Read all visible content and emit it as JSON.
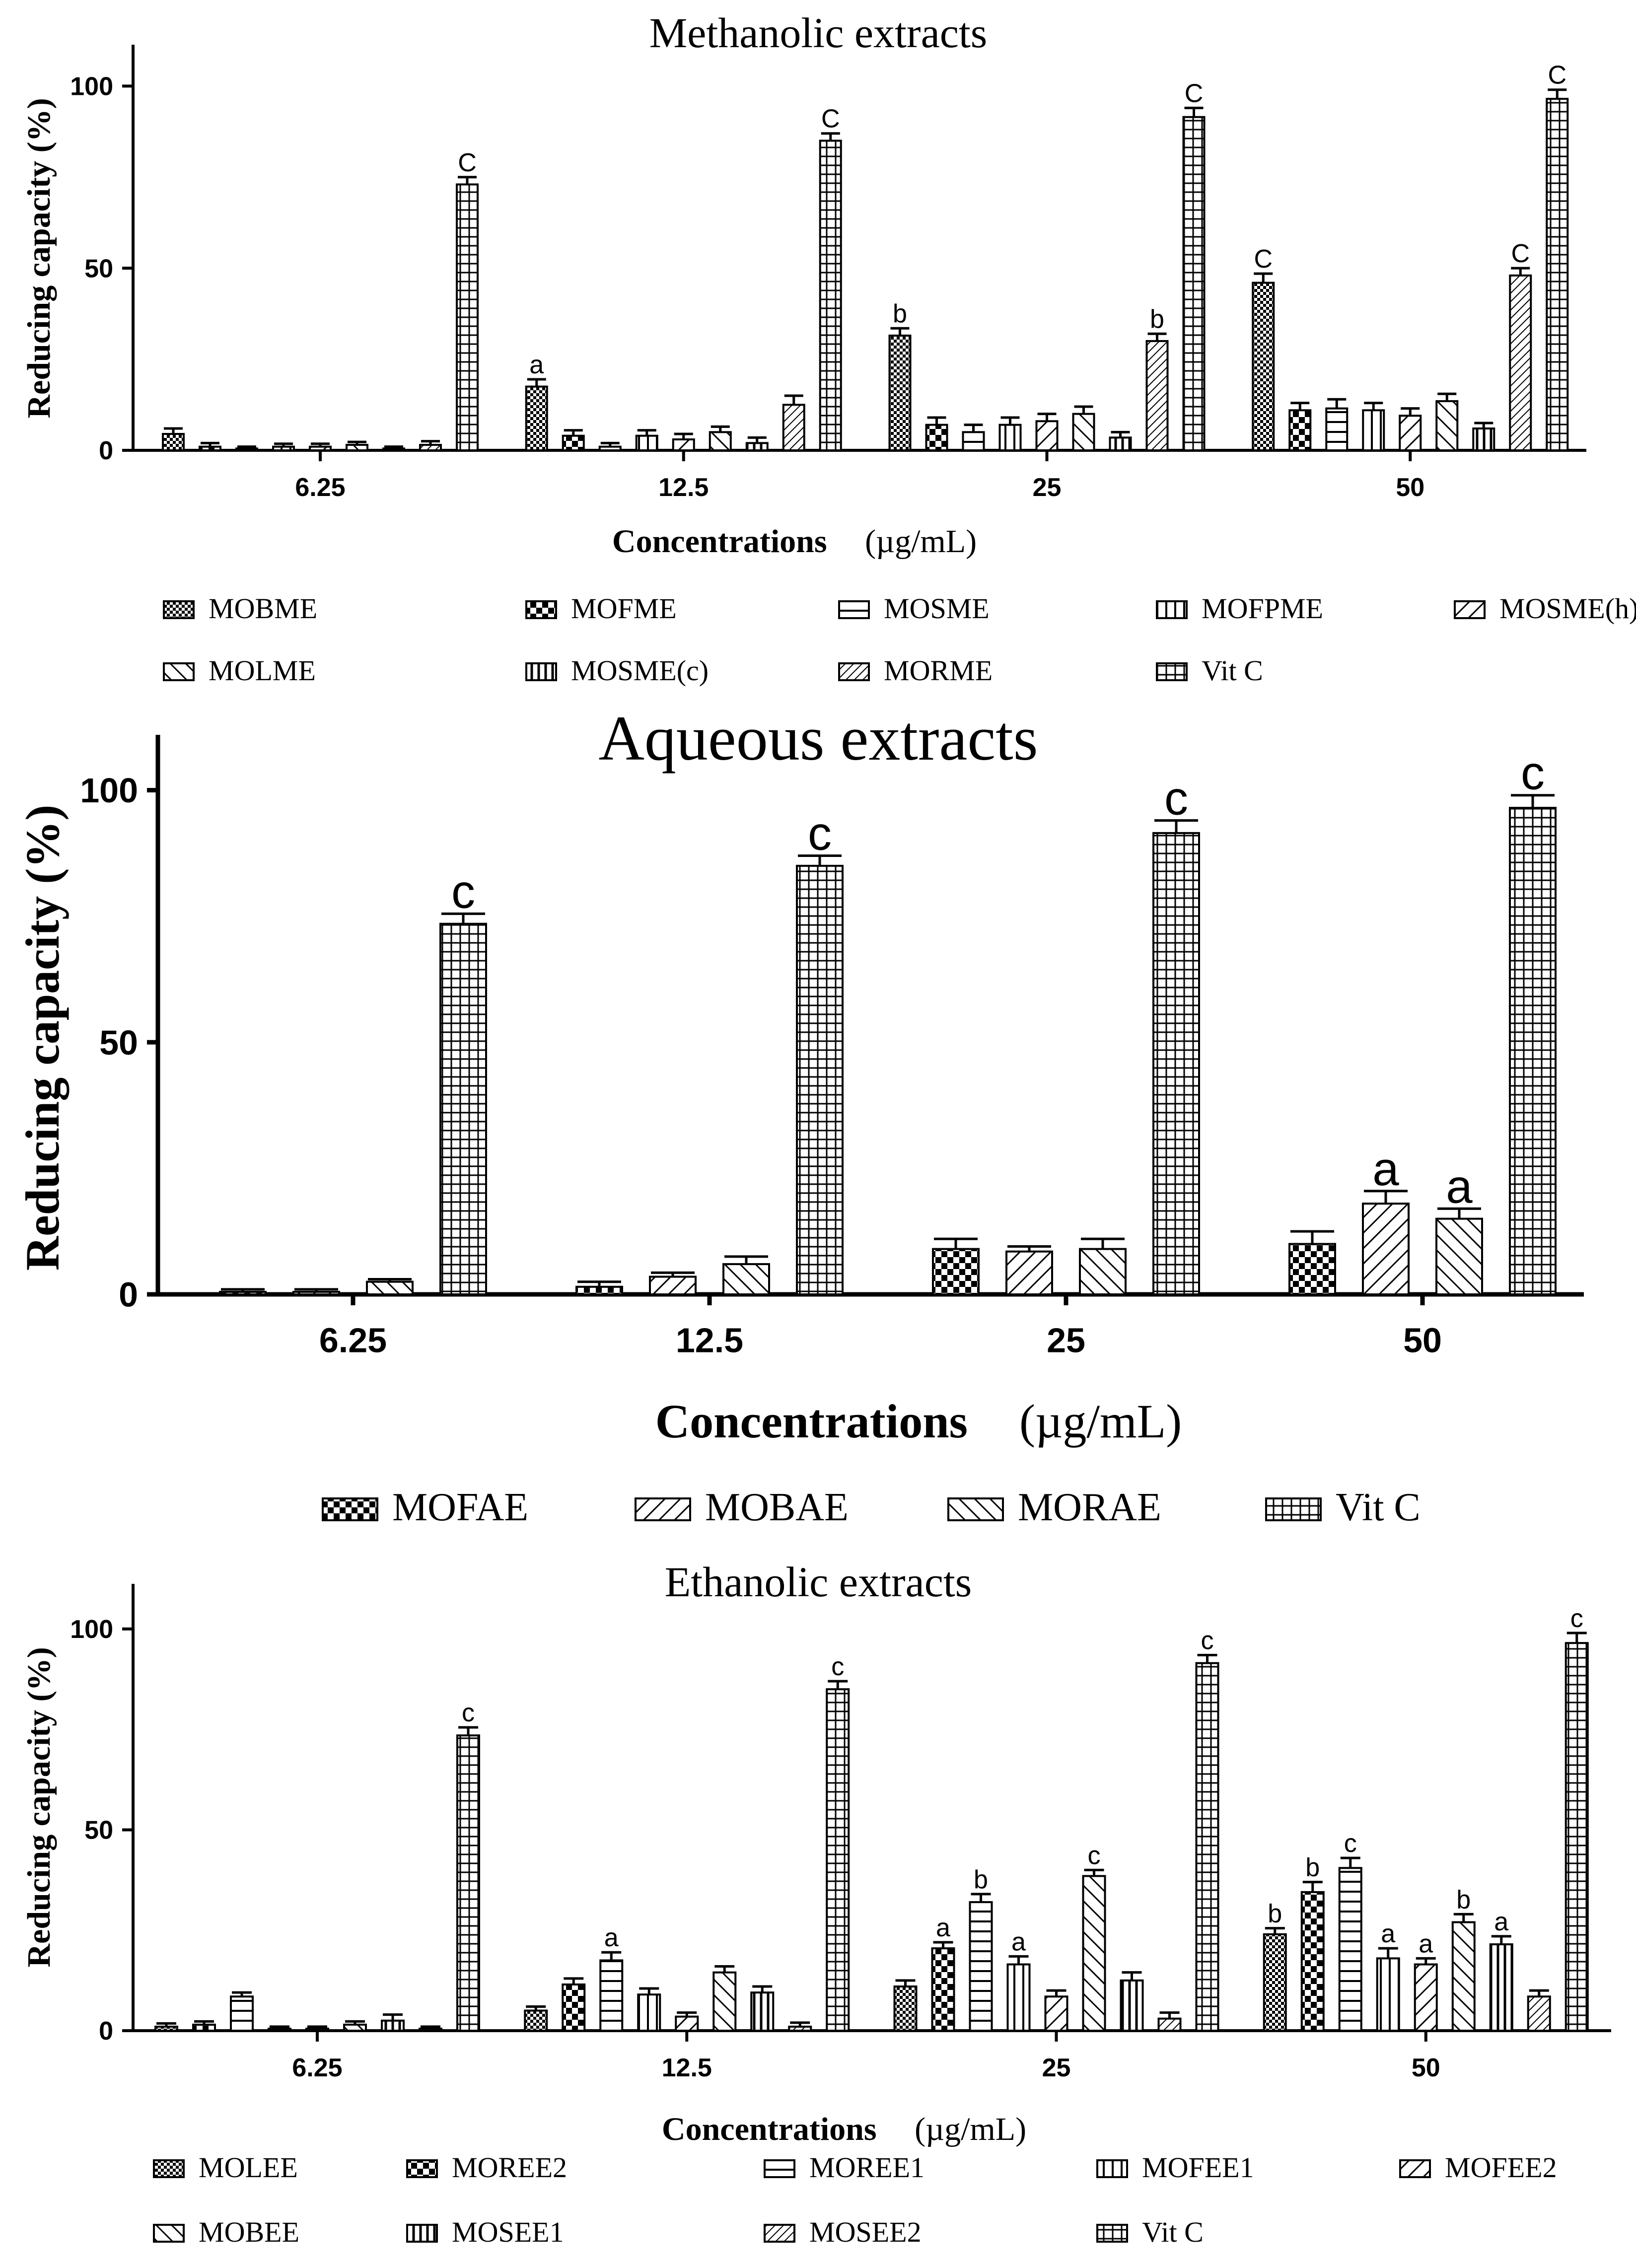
{
  "chart_data": [
    {
      "type": "bar",
      "title": "Methanolic extracts",
      "xlabel": "Concentrations",
      "xlabel_unit": "(µg/mL)",
      "ylabel": "Reducing capacity (%)",
      "ylim": [
        0,
        110
      ],
      "yticks": [
        "0",
        "50",
        "100"
      ],
      "categories": [
        "6.25",
        "12.5",
        "25",
        "50"
      ],
      "series": [
        {
          "name": "MOBME",
          "pattern": "checker",
          "values": [
            4.5,
            17.5,
            31.5,
            46
          ],
          "errors": [
            1.5,
            2,
            2,
            2.5
          ],
          "labels": [
            "",
            "a",
            "b",
            "C"
          ]
        },
        {
          "name": "MOFME",
          "pattern": "bigchecker",
          "values": [
            1,
            4,
            7,
            11
          ],
          "errors": [
            1,
            1.5,
            2,
            2
          ],
          "labels": [
            "",
            "",
            "",
            ""
          ]
        },
        {
          "name": "MOSME",
          "pattern": "hlines",
          "values": [
            0.5,
            1,
            5,
            11.5
          ],
          "errors": [
            0.5,
            1,
            2,
            2.5
          ],
          "labels": [
            "",
            "",
            "",
            ""
          ]
        },
        {
          "name": "MOFPME",
          "pattern": "vlines",
          "values": [
            1,
            4,
            7,
            11
          ],
          "errors": [
            0.8,
            1.5,
            2,
            2
          ],
          "labels": [
            "",
            "",
            "",
            ""
          ]
        },
        {
          "name": "MOSME(h)",
          "pattern": "diagR",
          "values": [
            1,
            3,
            8,
            9.5
          ],
          "errors": [
            0.8,
            1.5,
            2,
            2
          ],
          "labels": [
            "",
            "",
            "",
            ""
          ]
        },
        {
          "name": "MOLME",
          "pattern": "diagL",
          "values": [
            1.5,
            5,
            10,
            13.5
          ],
          "errors": [
            0.8,
            1.5,
            2,
            2
          ],
          "labels": [
            "",
            "",
            "",
            ""
          ]
        },
        {
          "name": "MOSME(c)",
          "pattern": "vlinesBold",
          "values": [
            0.5,
            2,
            3.5,
            6
          ],
          "errors": [
            0.5,
            1.5,
            1.5,
            1.5
          ],
          "labels": [
            "",
            "",
            "",
            ""
          ]
        },
        {
          "name": "MORME",
          "pattern": "diagRdense",
          "values": [
            1.5,
            12.5,
            30,
            48
          ],
          "errors": [
            1,
            2.5,
            2,
            2
          ],
          "labels": [
            "",
            "",
            "b",
            "C"
          ]
        },
        {
          "name": "Vit C",
          "pattern": "grid",
          "values": [
            73,
            85,
            91.5,
            96.5
          ],
          "errors": [
            2,
            2,
            2.5,
            2.5
          ],
          "labels": [
            "C",
            "C",
            "C",
            "C"
          ]
        }
      ],
      "legend": "bottom"
    },
    {
      "type": "bar",
      "title": "Aqueous extracts",
      "xlabel": "Concentrations",
      "xlabel_unit": "(µg/mL)",
      "ylabel": "Reducing capacity (%)",
      "ylim": [
        0,
        110
      ],
      "yticks": [
        "0",
        "50",
        "100"
      ],
      "categories": [
        "6.25",
        "12.5",
        "25",
        "50"
      ],
      "series": [
        {
          "name": "MOFAE",
          "pattern": "bigchecker",
          "values": [
            0.5,
            1.5,
            9,
            10
          ],
          "errors": [
            0.5,
            1,
            2,
            2.5
          ],
          "labels": [
            "",
            "",
            "",
            ""
          ]
        },
        {
          "name": "MOBAE",
          "pattern": "diagR",
          "values": [
            0.5,
            3.5,
            8.5,
            18
          ],
          "errors": [
            0.5,
            0.8,
            1,
            2.5
          ],
          "labels": [
            "",
            "",
            "",
            "a"
          ]
        },
        {
          "name": "MORAE",
          "pattern": "diagL",
          "values": [
            2.5,
            6,
            9,
            15
          ],
          "errors": [
            0.5,
            1.5,
            2,
            2
          ],
          "labels": [
            "",
            "",
            "",
            "a"
          ]
        },
        {
          "name": "Vit C",
          "pattern": "grid",
          "values": [
            73.5,
            85,
            91.5,
            96.5
          ],
          "errors": [
            2,
            2,
            2.5,
            2.5
          ],
          "labels": [
            "c",
            "c",
            "c",
            "c"
          ]
        }
      ],
      "legend": "bottom"
    },
    {
      "type": "bar",
      "title": "Ethanolic extracts",
      "xlabel": "Concentrations",
      "xlabel_unit": "(µg/mL)",
      "ylabel": "Reducing capacity (%)",
      "ylim": [
        0,
        110
      ],
      "yticks": [
        "0",
        "50",
        "100"
      ],
      "categories": [
        "6.25",
        "12.5",
        "25",
        "50"
      ],
      "series": [
        {
          "name": "MOLEE",
          "pattern": "checker",
          "values": [
            1,
            5,
            11,
            24
          ],
          "errors": [
            0.8,
            1,
            1.5,
            1.5
          ],
          "labels": [
            "",
            "",
            "",
            "b"
          ]
        },
        {
          "name": "MOREE2",
          "pattern": "bigchecker",
          "values": [
            1.5,
            11.5,
            20.5,
            34.5
          ],
          "errors": [
            0.8,
            1.5,
            1.5,
            2.5
          ],
          "labels": [
            "",
            "",
            "a",
            "b"
          ]
        },
        {
          "name": "MOREE1",
          "pattern": "hlines",
          "values": [
            8.5,
            17.5,
            32,
            40.5
          ],
          "errors": [
            1,
            2,
            2,
            2.5
          ],
          "labels": [
            "",
            "a",
            "b",
            "c"
          ]
        },
        {
          "name": "MOFEE1",
          "pattern": "vlines",
          "values": [
            0.5,
            9,
            16.5,
            18
          ],
          "errors": [
            0.5,
            1.5,
            2,
            2.5
          ],
          "labels": [
            "",
            "",
            "a",
            "a"
          ]
        },
        {
          "name": "MOFEE2",
          "pattern": "diagR",
          "values": [
            0.5,
            3.5,
            8.5,
            16.5
          ],
          "errors": [
            0.5,
            1,
            1.5,
            1.5
          ],
          "labels": [
            "",
            "",
            "",
            "a"
          ]
        },
        {
          "name": "MOBEE",
          "pattern": "diagL",
          "values": [
            1.5,
            14.5,
            38.5,
            27
          ],
          "errors": [
            0.8,
            1.5,
            1.5,
            2
          ],
          "labels": [
            "",
            "",
            "c",
            "b"
          ]
        },
        {
          "name": "MOSEE1",
          "pattern": "vlinesBold",
          "values": [
            2.5,
            9.5,
            12.5,
            21.5
          ],
          "errors": [
            1.5,
            1.5,
            2,
            2
          ],
          "labels": [
            "",
            "",
            "",
            "a"
          ]
        },
        {
          "name": "MOSEE2",
          "pattern": "diagRdense",
          "values": [
            0.5,
            1,
            3,
            8.5
          ],
          "errors": [
            0.5,
            1,
            1.5,
            1.5
          ],
          "labels": [
            "",
            "",
            "",
            ""
          ]
        },
        {
          "name": "Vit C",
          "pattern": "grid",
          "values": [
            73.5,
            85,
            91.5,
            96.5
          ],
          "errors": [
            2,
            2,
            2,
            2.5
          ],
          "labels": [
            "c",
            "c",
            "c",
            "c"
          ]
        }
      ],
      "legend": "bottom"
    }
  ]
}
